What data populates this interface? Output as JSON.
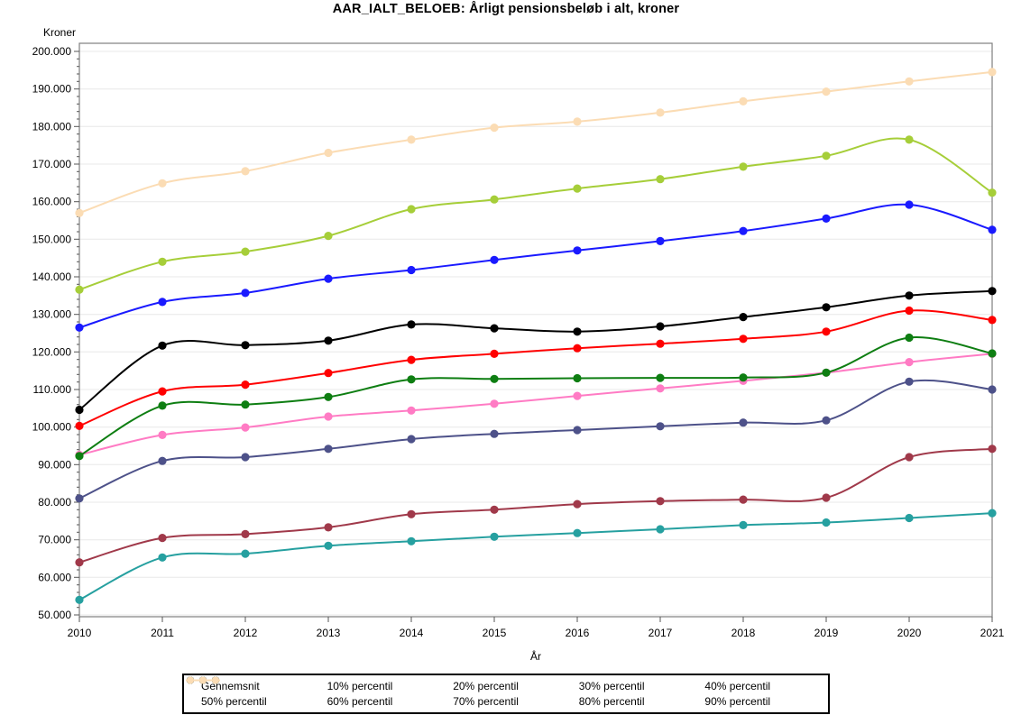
{
  "title": "AAR_IALT_BELOEB: Årligt pensionsbeløb i alt, kroner",
  "chart_data": {
    "type": "line",
    "x": [
      2010,
      2011,
      2012,
      2013,
      2014,
      2015,
      2016,
      2017,
      2018,
      2019,
      2020,
      2021
    ],
    "xlabel": "År",
    "ylabel": "Kroner",
    "ylim": [
      50000,
      200000
    ],
    "ytick_step": 10000,
    "ytick_minor_step": 2000,
    "ytick_format": "thousands-dot (e.g. 200.000)",
    "grid": "horizontal-major",
    "legend_position": "bottom-boxed",
    "marker": "filled-circle",
    "line_style": "smooth",
    "series": [
      {
        "name": "Gennemsnit",
        "color": "#FF0000",
        "values": [
          100300,
          109500,
          111300,
          114400,
          117900,
          119500,
          121000,
          122200,
          123500,
          125400,
          131000,
          128500
        ]
      },
      {
        "name": "10% percentil",
        "color": "#26A0A0",
        "values": [
          54000,
          65300,
          66300,
          68400,
          69600,
          70800,
          71800,
          72800,
          73900,
          74600,
          75800,
          77100
        ]
      },
      {
        "name": "20% percentil",
        "color": "#A0394A",
        "values": [
          64000,
          70500,
          71500,
          73300,
          76800,
          78000,
          79500,
          80300,
          80700,
          81200,
          92000,
          94200
        ]
      },
      {
        "name": "30% percentil",
        "color": "#4D5189",
        "values": [
          81000,
          91000,
          92000,
          94200,
          96800,
          98200,
          99200,
          100200,
          101200,
          101800,
          112100,
          110000
        ]
      },
      {
        "name": "40% percentil",
        "color": "#FF7BC4",
        "values": [
          92600,
          97900,
          99900,
          102800,
          104400,
          106200,
          108300,
          110300,
          112300,
          114500,
          117300,
          119500
        ]
      },
      {
        "name": "50% percentil",
        "color": "#0E7E12",
        "values": [
          92300,
          105700,
          106000,
          108000,
          112700,
          112800,
          113000,
          113100,
          113200,
          114500,
          123800,
          119600
        ]
      },
      {
        "name": "60% percentil",
        "color": "#000000",
        "values": [
          104600,
          121700,
          121800,
          123000,
          127300,
          126300,
          125400,
          126800,
          129300,
          131900,
          135000,
          136200
        ]
      },
      {
        "name": "70% percentil",
        "color": "#1A1AFF",
        "values": [
          126500,
          133300,
          135700,
          139500,
          141800,
          144500,
          147000,
          149500,
          152200,
          155500,
          159200,
          152500
        ]
      },
      {
        "name": "80% percentil",
        "color": "#A6CE39",
        "values": [
          136600,
          144000,
          146700,
          150900,
          158000,
          160600,
          163500,
          166000,
          169300,
          172200,
          176500,
          162400
        ]
      },
      {
        "name": "90% percentil",
        "color": "#FBDCB4",
        "values": [
          157000,
          164900,
          168100,
          173000,
          176500,
          179700,
          181300,
          183700,
          186700,
          189300,
          192000,
          194500
        ]
      }
    ]
  },
  "colors": {
    "gridline": "#E8E8E8",
    "frame": "#7F7F7F",
    "tick": "#555555",
    "legend_border": "#000000"
  }
}
